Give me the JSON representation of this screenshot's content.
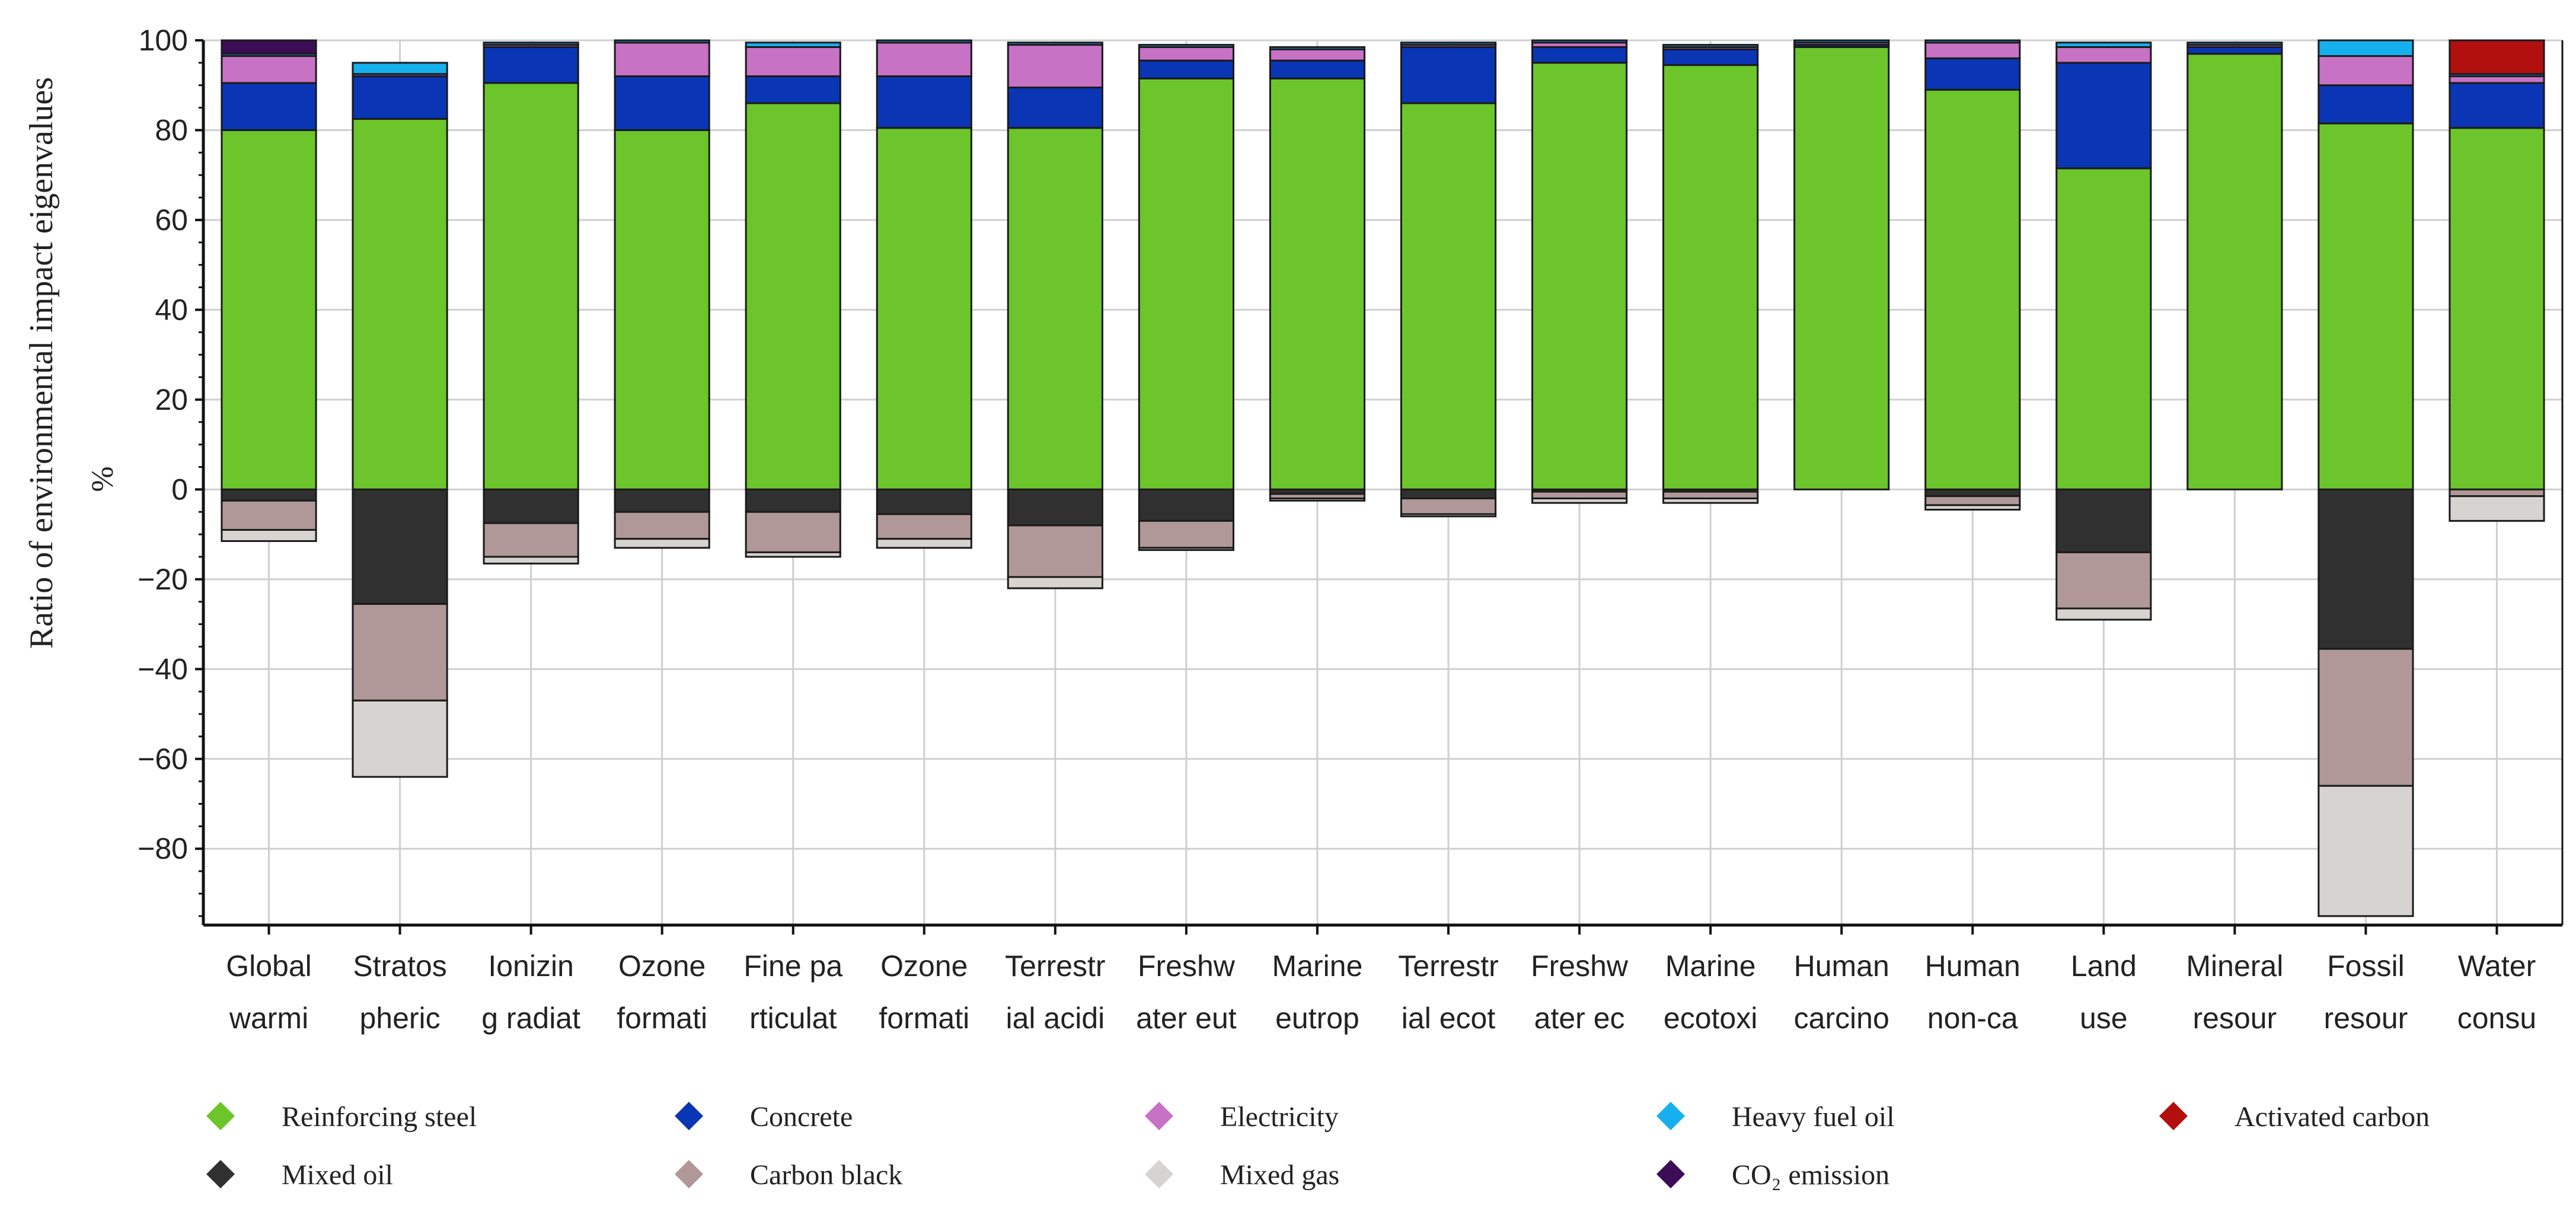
{
  "chart_data": {
    "type": "bar",
    "stacked": true,
    "title": "",
    "xlabel": "",
    "ylabel": "Ratio of environmental impact eigenvalues",
    "yunit": "%",
    "ylim": [
      -97,
      100
    ],
    "yticks": [
      100,
      80,
      60,
      40,
      20,
      0,
      -20,
      -40,
      -60,
      -80
    ],
    "grid": true,
    "legend_position": "bottom",
    "categories": [
      [
        "Global",
        "warmi"
      ],
      [
        "Stratos",
        "pheric"
      ],
      [
        "Ionizin",
        "g radiat"
      ],
      [
        "Ozone",
        "formati"
      ],
      [
        "Fine pa",
        "rticulat"
      ],
      [
        "Ozone",
        "formati"
      ],
      [
        "Terrestr",
        "ial acidi"
      ],
      [
        "Freshw",
        "ater eut"
      ],
      [
        "Marine",
        "eutrop"
      ],
      [
        "Terrestr",
        "ial ecot"
      ],
      [
        "Freshw",
        "ater ec"
      ],
      [
        "Marine",
        "ecotoxi"
      ],
      [
        "Human",
        "carcino"
      ],
      [
        "Human",
        "non-ca"
      ],
      [
        "Land",
        "use"
      ],
      [
        "Mineral",
        "resour"
      ],
      [
        "Fossil",
        "resour"
      ],
      [
        "Water",
        "consu"
      ]
    ],
    "series": [
      {
        "name": "Reinforcing steel",
        "color": "#6cc52a",
        "values": [
          80,
          82.5,
          90.5,
          80,
          86,
          80.5,
          80.5,
          91.5,
          91.5,
          86,
          95,
          94.5,
          98.5,
          89,
          71.5,
          97,
          81.5,
          80.5
        ]
      },
      {
        "name": "Concrete",
        "color": "#0a35b5",
        "values": [
          10.5,
          9.5,
          8,
          12,
          6,
          11.5,
          9,
          4,
          4,
          12.5,
          3.5,
          3.5,
          0.5,
          7,
          23.5,
          1.5,
          8.5,
          10
        ]
      },
      {
        "name": "Electricity",
        "color": "#c772c5",
        "values": [
          6,
          0.5,
          0.5,
          7.5,
          6.5,
          7.5,
          9.5,
          3,
          2.5,
          0.5,
          1,
          0.5,
          0.5,
          3.5,
          3.5,
          0.5,
          6.5,
          1.5
        ]
      },
      {
        "name": "Heavy fuel oil",
        "color": "#16b0ef",
        "values": [
          0.5,
          2.5,
          0.5,
          0.5,
          1,
          0.5,
          0.5,
          0.5,
          0.5,
          0.5,
          0.5,
          0.5,
          0.5,
          0.5,
          1,
          0.5,
          3.5,
          0.5
        ]
      },
      {
        "name": "Activated carbon",
        "color": "#b20f0f",
        "values": [
          0,
          0,
          0,
          0,
          0,
          0,
          0,
          0,
          0,
          0,
          0,
          0,
          0,
          0,
          0,
          0,
          0,
          7.5
        ]
      },
      {
        "name": "Mixed oil",
        "color": "#303030",
        "values": [
          -2.5,
          -25.5,
          -7.5,
          -5,
          -5,
          -5.5,
          -8,
          -7,
          -1,
          -2,
          -0.5,
          -0.5,
          0,
          -1.5,
          -14,
          0,
          -35.5,
          0
        ]
      },
      {
        "name": "Carbon black",
        "color": "#b09898",
        "values": [
          -6.5,
          -21.5,
          -7.5,
          -6,
          -9,
          -5.5,
          -11.5,
          -6,
          -1,
          -3.5,
          -1.5,
          -1.5,
          0,
          -2,
          -12.5,
          0,
          -30.5,
          -1.5
        ]
      },
      {
        "name": "Mixed gas",
        "color": "#d6d3d1",
        "values": [
          -2.5,
          -17,
          -1.5,
          -2,
          -1,
          -2,
          -2.5,
          -0.5,
          -0.5,
          -0.5,
          -1,
          -1,
          0,
          -1,
          -2.5,
          0,
          -29,
          -5.5
        ]
      },
      {
        "name": "CO₂ emission",
        "color": "#3d0c56",
        "values": [
          3,
          0,
          0,
          0,
          0,
          0,
          0,
          0,
          0,
          0,
          0,
          0,
          0,
          0,
          0,
          0,
          0,
          0
        ]
      }
    ],
    "legend_order": [
      "Reinforcing steel",
      "Concrete",
      "Electricity",
      "Heavy fuel oil",
      "Activated carbon",
      "Mixed oil",
      "Carbon black",
      "Mixed gas",
      "CO₂ emission"
    ]
  }
}
